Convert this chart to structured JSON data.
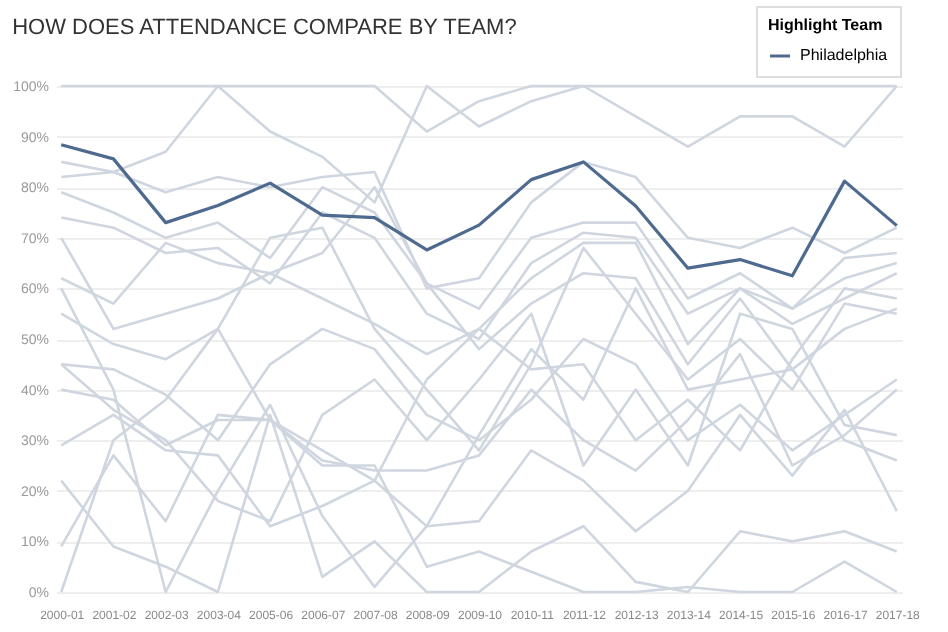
{
  "chart_data": {
    "type": "line",
    "title": "HOW DOES ATTENDANCE COMPARE BY TEAM?",
    "legend_title": "Highlight Team",
    "legend": "top right",
    "grid": "y",
    "marker": "none",
    "line_style": "solid",
    "categories": [
      "2000-01",
      "2001-02",
      "2002-03",
      "2003-04",
      "2005-06",
      "2006-07",
      "2007-08",
      "2008-09",
      "2009-10",
      "2010-11",
      "2011-12",
      "2012-13",
      "2013-14",
      "2014-15",
      "2015-16",
      "2016-17",
      "2017-18"
    ],
    "ylim": [
      0,
      100
    ],
    "yticks": [
      {
        "value": 0,
        "label": "0%"
      },
      {
        "value": 10,
        "label": "10%"
      },
      {
        "value": 20,
        "label": "20%"
      },
      {
        "value": 30,
        "label": "30%"
      },
      {
        "value": 40,
        "label": "40%"
      },
      {
        "value": 50,
        "label": "50%"
      },
      {
        "value": 60,
        "label": "60%"
      },
      {
        "value": 70,
        "label": "70%"
      },
      {
        "value": 80,
        "label": "80%"
      },
      {
        "value": 90,
        "label": "90%"
      },
      {
        "value": 100,
        "label": "100%"
      }
    ],
    "series": [
      {
        "color": "#cfd6df",
        "values": [
          100,
          100,
          100,
          100,
          100,
          100,
          100,
          91,
          97,
          100,
          100,
          100,
          100,
          100,
          100,
          100,
          100
        ]
      },
      {
        "color": "#cfd6df",
        "values": [
          85,
          83,
          87,
          100,
          91,
          86,
          77,
          100,
          92,
          97,
          100,
          94,
          88,
          94,
          94,
          88,
          100
        ]
      },
      {
        "color": "#cfd6df",
        "values": [
          82,
          83,
          79,
          82,
          80,
          82,
          83,
          60,
          62,
          77,
          85,
          82,
          70,
          68,
          72,
          67,
          72
        ]
      },
      {
        "color": "#cfd6df",
        "values": [
          79,
          75,
          70,
          73,
          66,
          80,
          75,
          61,
          56,
          70,
          73,
          73,
          58,
          63,
          56,
          62,
          65
        ]
      },
      {
        "color": "#cfd6df",
        "values": [
          74,
          72,
          67,
          68,
          61,
          75,
          70,
          55,
          50,
          65,
          71,
          70,
          55,
          60,
          53,
          58,
          63
        ]
      },
      {
        "color": "#cfd6df",
        "values": [
          70,
          52,
          55,
          58,
          63,
          58,
          53,
          47,
          52,
          62,
          69,
          69,
          49,
          60,
          56,
          66,
          67
        ]
      },
      {
        "color": "#cfd6df",
        "values": [
          62,
          57,
          69,
          65,
          63,
          67,
          80,
          61,
          48,
          57,
          63,
          62,
          45,
          58,
          44,
          52,
          56
        ]
      },
      {
        "color": "#cfd6df",
        "values": [
          55,
          49,
          46,
          52,
          70,
          72,
          52,
          40,
          28,
          45,
          68,
          55,
          42,
          50,
          40,
          57,
          55
        ]
      },
      {
        "color": "#cfd6df",
        "values": [
          45,
          44,
          39,
          30,
          45,
          52,
          48,
          35,
          30,
          38,
          50,
          45,
          30,
          37,
          28,
          35,
          42
        ]
      },
      {
        "color": "#cfd6df",
        "values": [
          40,
          38,
          29,
          34,
          34,
          26,
          24,
          24,
          27,
          40,
          30,
          24,
          34,
          47,
          25,
          31,
          40
        ]
      },
      {
        "color": "#cfd6df",
        "values": [
          29,
          35,
          28,
          27,
          13,
          17,
          22,
          13,
          14,
          28,
          22,
          12,
          20,
          35,
          23,
          36,
          16
        ]
      },
      {
        "color": "#cfd6df",
        "values": [
          22,
          9,
          5,
          0,
          35,
          3,
          10,
          0,
          0,
          8,
          13,
          2,
          0,
          12,
          10,
          12,
          8
        ]
      },
      {
        "color": "#cfd6df",
        "values": [
          9,
          27,
          14,
          35,
          34,
          25,
          25,
          5,
          8,
          4,
          0,
          0,
          1,
          0,
          0,
          6,
          0
        ]
      },
      {
        "color": "#cfd6df",
        "values": [
          60,
          40,
          0,
          20,
          37,
          15,
          1,
          13,
          31,
          48,
          38,
          60,
          40,
          42,
          44,
          30,
          26
        ]
      },
      {
        "color": "#cfd6df",
        "values": [
          45,
          36,
          30,
          18,
          14,
          35,
          42,
          30,
          42,
          55,
          25,
          40,
          25,
          55,
          52,
          33,
          31
        ]
      },
      {
        "color": "#cfd6df",
        "values": [
          0,
          30,
          38,
          52,
          34,
          28,
          22,
          42,
          52,
          44,
          45,
          30,
          38,
          28,
          46,
          60,
          58
        ]
      },
      {
        "name": "Philadelphia",
        "color": "#4e6a8e",
        "values": [
          88.4,
          85.6,
          73,
          76.4,
          80.8,
          74.5,
          74,
          67.6,
          72.5,
          81.5,
          85,
          76.3,
          64,
          65.7,
          62.5,
          81.2,
          72.4
        ]
      }
    ]
  }
}
